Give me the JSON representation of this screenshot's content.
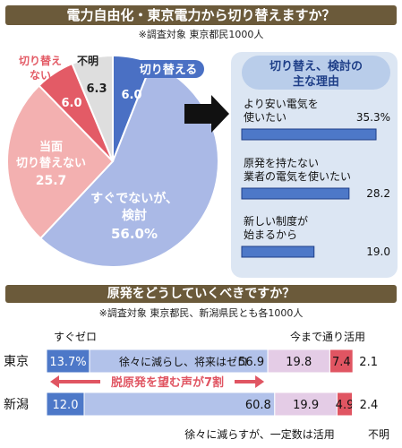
{
  "sections": {
    "top": {
      "title": "電力自由化・東京電力から切り替えますか？",
      "note": "※調査対象 東京都民1000人"
    },
    "bottom": {
      "title": "原発をどうしていくべきですか？",
      "note": "※調査対象 東京都民、新潟県民とも各1000人"
    }
  },
  "colors": {
    "header_bg": "#6b5a3a",
    "pie_kentou": "#aab9e6",
    "pie_kirikaeru": "#4a70c4",
    "pie_toumen": "#f3b0b0",
    "pie_kirikaenai": "#e35b66",
    "pie_fumei": "#dedede",
    "bar_blue": "#4d78c8",
    "bar_light_blue": "#b2c2ea",
    "bar_pink": "#e4cce6",
    "bar_red": "#e05562",
    "reason_panel": "#dce6f3"
  },
  "chart_data": [
    {
      "type": "pie",
      "title": "電力自由化・東京電力から切り替えますか？",
      "slices": [
        {
          "label": "切り替える",
          "value": 6.0
        },
        {
          "label": "すぐでないが、検討",
          "value": 56.0
        },
        {
          "label": "当面切り替えない",
          "value": 25.7
        },
        {
          "label": "切り替えない",
          "value": 6.0
        },
        {
          "label": "不明",
          "value": 6.3
        }
      ],
      "labels": {
        "kirikaeru": "切り替える",
        "kirikaeru_val": "6.0",
        "kentou_1": "すぐでないが、",
        "kentou_2": "検討",
        "kentou_val": "56.0%",
        "toumen_1": "当面",
        "toumen_2": "切り替えない",
        "toumen_val": "25.7",
        "kirikaenai_1": "切り替え",
        "kirikaenai_2": "ない",
        "kirikaenai_val": "6.0",
        "fumei": "不明",
        "fumei_val": "6.3"
      }
    },
    {
      "type": "bar",
      "title_1": "切り替え、検討の",
      "title_2": "主な理由",
      "max": 40,
      "items": [
        {
          "line1": "より安い電気を",
          "line2": "使いたい",
          "value": 35.3,
          "value_label": "35.3%"
        },
        {
          "line1": "原発を持たない",
          "line2": "業者の電気を使いたい",
          "value": 28.2,
          "value_label": "28.2"
        },
        {
          "line1": "新しい制度が",
          "line2": "始まるから",
          "value": 19.0,
          "value_label": "19.0"
        }
      ]
    },
    {
      "type": "bar",
      "stacked": true,
      "orientation": "horizontal",
      "title": "原発をどうしていくべきですか？",
      "categories": [
        "東京",
        "新潟"
      ],
      "series": [
        {
          "name": "すぐゼロ",
          "values": [
            13.7,
            12.0
          ],
          "labels": [
            "13.7%",
            "12.0"
          ]
        },
        {
          "name": "徐々に減らし、将来はゼロ",
          "values": [
            56.9,
            60.8
          ],
          "labels": [
            "56.9",
            "60.8"
          ]
        },
        {
          "name": "徐々に減らすが、一定数は活用",
          "values": [
            19.8,
            19.9
          ],
          "labels": [
            "19.8",
            "19.9"
          ]
        },
        {
          "name": "今まで通り活用",
          "values": [
            7.4,
            4.9
          ],
          "labels": [
            "7.4",
            "4.9"
          ]
        },
        {
          "name": "不明",
          "values": [
            2.1,
            2.4
          ],
          "labels": [
            "2.1",
            "2.4"
          ]
        }
      ],
      "annotation": "脱原発を望む声が7割",
      "segment_text_tokyo": "徐々に減らし、将来はゼロ",
      "legend_sugu_zero": "すぐゼロ",
      "legend_imamade": "今まで通り活用",
      "legend_jojo": "徐々に減らすが、一定数は活用",
      "legend_fumei": "不明"
    }
  ]
}
